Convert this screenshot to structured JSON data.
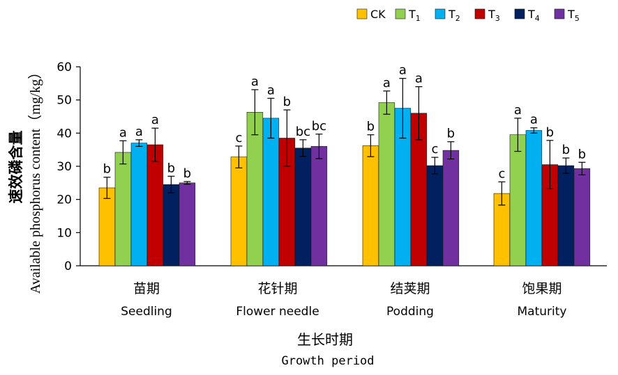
{
  "chart_data": {
    "type": "bar",
    "ylabel_cn": "速效磷含量",
    "ylabel_en": "Available phosphorus content（mg/kg）",
    "xlabel_cn": "生长时期",
    "xlabel_en": "Growth period",
    "ylim": [
      0,
      60
    ],
    "yticks": [
      "0",
      "10",
      "20",
      "30",
      "40",
      "50",
      "60"
    ],
    "grid": false,
    "legend_position": "top-right",
    "categories": [
      {
        "cn": "苗期",
        "en": "Seedling"
      },
      {
        "cn": "花针期",
        "en": "Flower needle"
      },
      {
        "cn": "结荚期",
        "en": "Podding"
      },
      {
        "cn": "饱果期",
        "en": "Maturity"
      }
    ],
    "series": [
      {
        "name": "CK",
        "base": "CK",
        "sub": "",
        "color": "#FFC000",
        "values": [
          23.5,
          32.8,
          36.2,
          21.8
        ],
        "errors": [
          3.2,
          3.3,
          3.3,
          3.5
        ],
        "labels": [
          "b",
          "c",
          "b",
          "c"
        ]
      },
      {
        "name": "T1",
        "base": "T",
        "sub": "1",
        "color": "#92D050",
        "values": [
          34.2,
          46.3,
          49.2,
          39.5
        ],
        "errors": [
          3.5,
          6.8,
          3.5,
          5.0
        ],
        "labels": [
          "a",
          "a",
          "a",
          "a"
        ]
      },
      {
        "name": "T2",
        "base": "T",
        "sub": "2",
        "color": "#00B0F0",
        "values": [
          37.0,
          44.5,
          47.5,
          40.8
        ],
        "errors": [
          1.0,
          6.0,
          9.0,
          0.8
        ],
        "labels": [
          "a",
          "a",
          "a",
          "a"
        ]
      },
      {
        "name": "T3",
        "base": "T",
        "sub": "3",
        "color": "#C00000",
        "values": [
          36.5,
          38.5,
          46.0,
          30.5
        ],
        "errors": [
          5.0,
          8.5,
          8.0,
          7.3
        ],
        "labels": [
          "a",
          "b",
          "a",
          "b"
        ]
      },
      {
        "name": "T4",
        "base": "T",
        "sub": "4",
        "color": "#002060",
        "values": [
          24.5,
          35.5,
          30.2,
          30.2
        ],
        "errors": [
          2.5,
          2.5,
          2.5,
          2.3
        ],
        "labels": [
          "b",
          "bc",
          "c",
          "b"
        ]
      },
      {
        "name": "T5",
        "base": "T",
        "sub": "5",
        "color": "#7030A0",
        "values": [
          25.0,
          36.0,
          34.8,
          29.3
        ],
        "errors": [
          0.4,
          3.7,
          2.6,
          1.9
        ],
        "labels": [
          "b",
          "bc",
          "b",
          "b"
        ]
      }
    ]
  }
}
